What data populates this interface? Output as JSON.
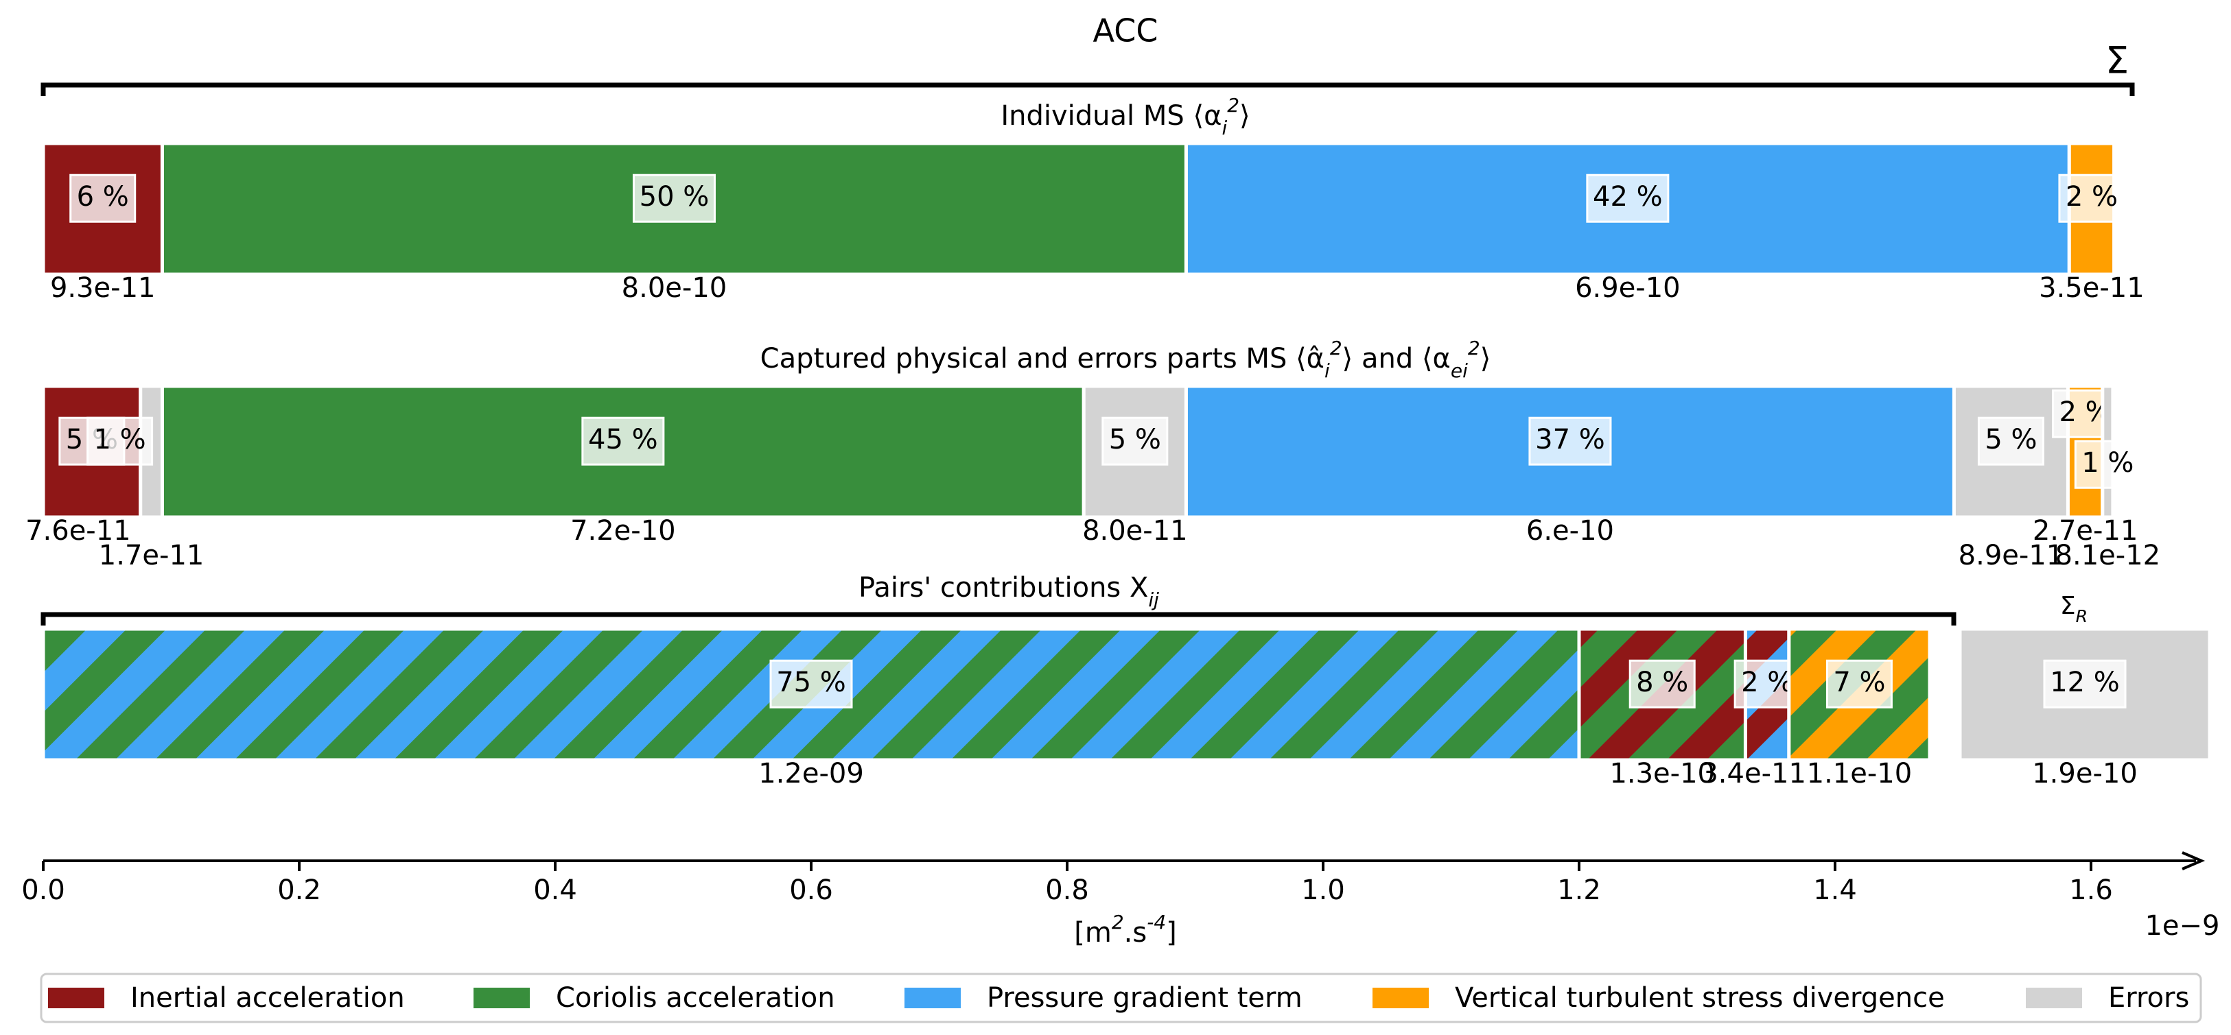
{
  "chart_data": {
    "type": "bar",
    "orientation": "horizontal-stacked",
    "title": "ACC",
    "sigma_label": "Σ",
    "sigma_r_label": "Σ_R",
    "xlabel": "[m^2.s^-4]",
    "x_exponent": "1e−9",
    "x_scale": 1e-09,
    "xlim": [
      0,
      1.7e-09
    ],
    "xticks": [
      0.0,
      0.2,
      0.4,
      0.6,
      0.8,
      1.0,
      1.2,
      1.4,
      1.6
    ],
    "xtick_labels": [
      "0.0",
      "0.2",
      "0.4",
      "0.6",
      "0.8",
      "1.0",
      "1.2",
      "1.4",
      "1.6"
    ],
    "colors": {
      "Inertial acceleration": "#8f1717",
      "Coriolis acceleration": "#388e3c",
      "Pressure gradient term": "#42a5f5",
      "Vertical turbulent stress divergence": "#ff9f00",
      "Errors": "#d3d3d3"
    },
    "legend": {
      "placement": "bottom",
      "entries": [
        "Inertial acceleration",
        "Coriolis acceleration",
        "Pressure gradient term",
        "Vertical turbulent stress divergence",
        "Errors"
      ]
    },
    "rows": [
      {
        "title": "Individual MS ⟨α_i^2⟩",
        "segments": [
          {
            "component": "Inertial acceleration",
            "value": 9.3e-11,
            "value_label": "9.3e-11",
            "percent_label": "6 %"
          },
          {
            "component": "Coriolis acceleration",
            "value": 8e-10,
            "value_label": "8.0e-10",
            "percent_label": "50 %"
          },
          {
            "component": "Pressure gradient term",
            "value": 6.9e-10,
            "value_label": "6.9e-10",
            "percent_label": "42 %"
          },
          {
            "component": "Vertical turbulent stress divergence",
            "value": 3.5e-11,
            "value_label": "3.5e-11",
            "percent_label": "2 %"
          }
        ]
      },
      {
        "title": "Captured physical and errors parts MS ⟨α̂_i^2⟩ and ⟨α_ei^2⟩",
        "segments": [
          {
            "component": "Inertial acceleration",
            "value": 7.6e-11,
            "value_label": "7.6e-11",
            "percent_label": "5 %"
          },
          {
            "component": "Errors",
            "value": 1.7e-11,
            "value_label": "1.7e-11",
            "percent_label": "1 %"
          },
          {
            "component": "Coriolis acceleration",
            "value": 7.2e-10,
            "value_label": "7.2e-10",
            "percent_label": "45 %"
          },
          {
            "component": "Errors",
            "value": 8e-11,
            "value_label": "8.0e-11",
            "percent_label": "5 %"
          },
          {
            "component": "Pressure gradient term",
            "value": 6e-10,
            "value_label": "6.e-10",
            "percent_label": "37 %"
          },
          {
            "component": "Errors",
            "value": 8.9e-11,
            "value_label": "8.9e-11",
            "percent_label": "5 %"
          },
          {
            "component": "Vertical turbulent stress divergence",
            "value": 2.7e-11,
            "value_label": "2.7e-11",
            "percent_label": "2 %"
          },
          {
            "component": "Errors",
            "value": 8.1e-12,
            "value_label": "8.1e-12",
            "percent_label": "1 %"
          }
        ]
      },
      {
        "title": "Pairs' contributions X_ij",
        "segments": [
          {
            "pair": [
              "Pressure gradient term",
              "Coriolis acceleration"
            ],
            "value": 1.2e-09,
            "value_label": "1.2e-09",
            "percent_label": "75 %"
          },
          {
            "pair": [
              "Coriolis acceleration",
              "Inertial acceleration"
            ],
            "value": 1.3e-10,
            "value_label": "1.3e-10",
            "percent_label": "8 %"
          },
          {
            "pair": [
              "Inertial acceleration",
              "Pressure gradient term"
            ],
            "value": 3.4e-11,
            "value_label": "3.4e-11",
            "percent_label": "2 %"
          },
          {
            "pair": [
              "Vertical turbulent stress divergence",
              "Coriolis acceleration"
            ],
            "value": 1.1e-10,
            "value_label": "1.1e-10",
            "percent_label": "7 %"
          },
          {
            "component": "Errors",
            "value": 1.9e-10,
            "value_label": "1.9e-10",
            "percent_label": "12 %"
          }
        ]
      }
    ]
  }
}
